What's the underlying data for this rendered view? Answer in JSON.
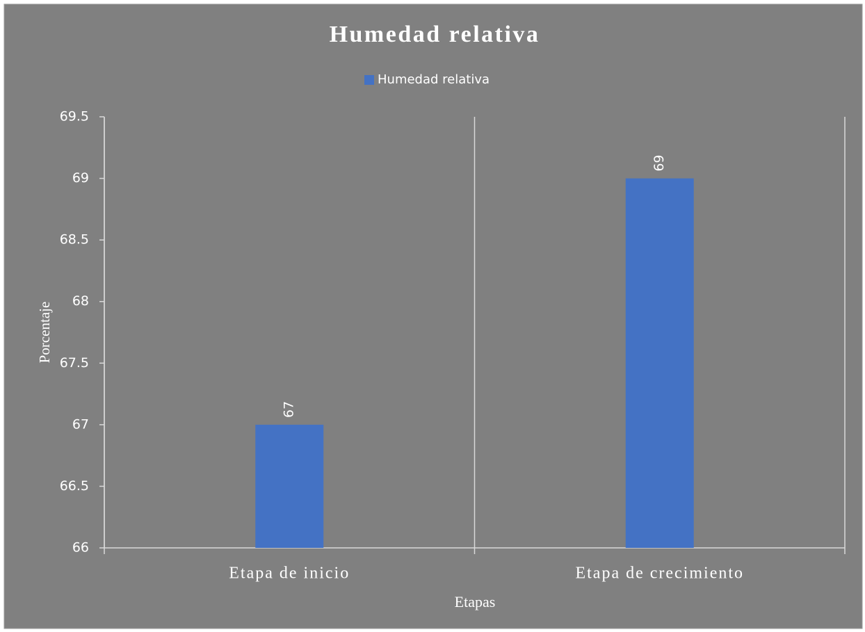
{
  "chart_data": {
    "type": "bar",
    "title": "Humedad relativa",
    "categories": [
      "Etapa de inicio",
      "Etapa de crecimiento"
    ],
    "series": [
      {
        "name": "Humedad relativa",
        "color": "#4472c4",
        "values": [
          67,
          69
        ]
      }
    ],
    "xlabel": "Etapas",
    "ylabel": "Porcentaje",
    "ylim": [
      66,
      69.5
    ],
    "yticks": [
      66,
      66.5,
      67,
      67.5,
      68,
      68.5,
      69,
      69.5
    ],
    "legend_position": "top",
    "grid": false
  }
}
